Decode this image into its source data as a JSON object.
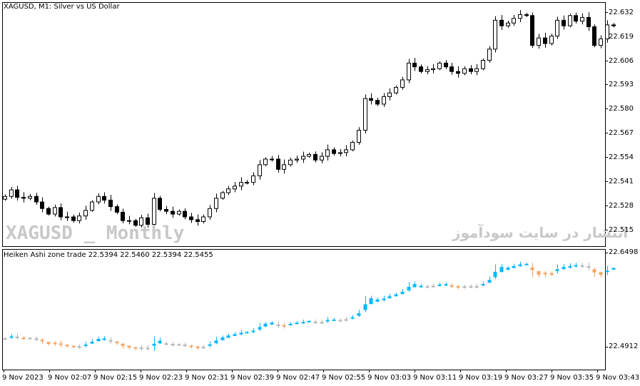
{
  "main_title": "XAGUSD, M1:  Silver vs US Dollar",
  "sub_title": "Heiken Ashi zone trade 22.5394 22.5460 22.5394 22.5455",
  "watermark_left": "XAGUSD _ Monthly",
  "watermark_right": "انتشار در سایت سودآموز",
  "colors": {
    "up": "#00b8ff",
    "down": "#f4a460",
    "neutral": "#b4b4b4",
    "axis": "#000000"
  },
  "chart_data": [
    {
      "type": "candlestick",
      "title": "XAGUSD, M1:  Silver vs US Dollar",
      "y_ticks": [
        "22.632",
        "22.619",
        "22.606",
        "22.593",
        "22.580",
        "22.567",
        "22.554",
        "22.541",
        "22.528",
        "22.515"
      ],
      "ylim": [
        22.5063,
        22.6372
      ],
      "x_ticks": [
        "9 Nov 2023",
        "9 Nov 02:07",
        "9 Nov 02:15",
        "9 Nov 02:23",
        "9 Nov 02:31",
        "9 Nov 02:39",
        "9 Nov 02:47",
        "9 Nov 02:55",
        "9 Nov 03:03",
        "9 Nov 03:11",
        "9 Nov 03:19",
        "9 Nov 03:27",
        "9 Nov 03:35",
        "9 Nov 03:43"
      ],
      "closes": [
        22.533,
        22.5365,
        22.5325,
        22.532,
        22.533,
        22.53,
        22.5265,
        22.5235,
        22.527,
        22.522,
        22.522,
        22.52,
        22.5225,
        22.5255,
        22.53,
        22.533,
        22.531,
        22.5275,
        22.5245,
        22.52,
        22.52,
        22.5175,
        22.5215,
        22.518,
        22.532,
        22.526,
        22.525,
        22.5235,
        22.525,
        22.522,
        22.5205,
        22.5195,
        22.522,
        22.5265,
        22.532,
        22.535,
        22.537,
        22.5385,
        22.5405,
        22.5405,
        22.544,
        22.55,
        22.553,
        22.553,
        22.5475,
        22.55,
        22.5525,
        22.553,
        22.5545,
        22.5555,
        22.5525,
        22.5545,
        22.558,
        22.556,
        22.5565,
        22.558,
        22.562,
        22.5685,
        22.5855,
        22.5845,
        22.5825,
        22.5865,
        22.5885,
        22.5915,
        22.5955,
        22.6045,
        22.6025,
        22.6,
        22.601,
        22.6015,
        22.6045,
        22.6025,
        22.6,
        22.599,
        22.6015,
        22.6,
        22.6015,
        22.606,
        22.612,
        22.6275,
        22.6245,
        22.626,
        22.6285,
        22.6305,
        22.63,
        22.614,
        22.618,
        22.615,
        22.619,
        22.6275,
        22.6245,
        22.63,
        22.627,
        22.629,
        22.624,
        22.614,
        22.6175,
        22.625,
        22.6245
      ]
    },
    {
      "type": "heiken-ashi",
      "title": "Heiken Ashi zone trade 22.5394 22.5460 22.5394 22.5455",
      "y_ticks": [
        "22.6498",
        "22.4912"
      ],
      "ylim": [
        22.4912,
        22.6498
      ]
    }
  ]
}
